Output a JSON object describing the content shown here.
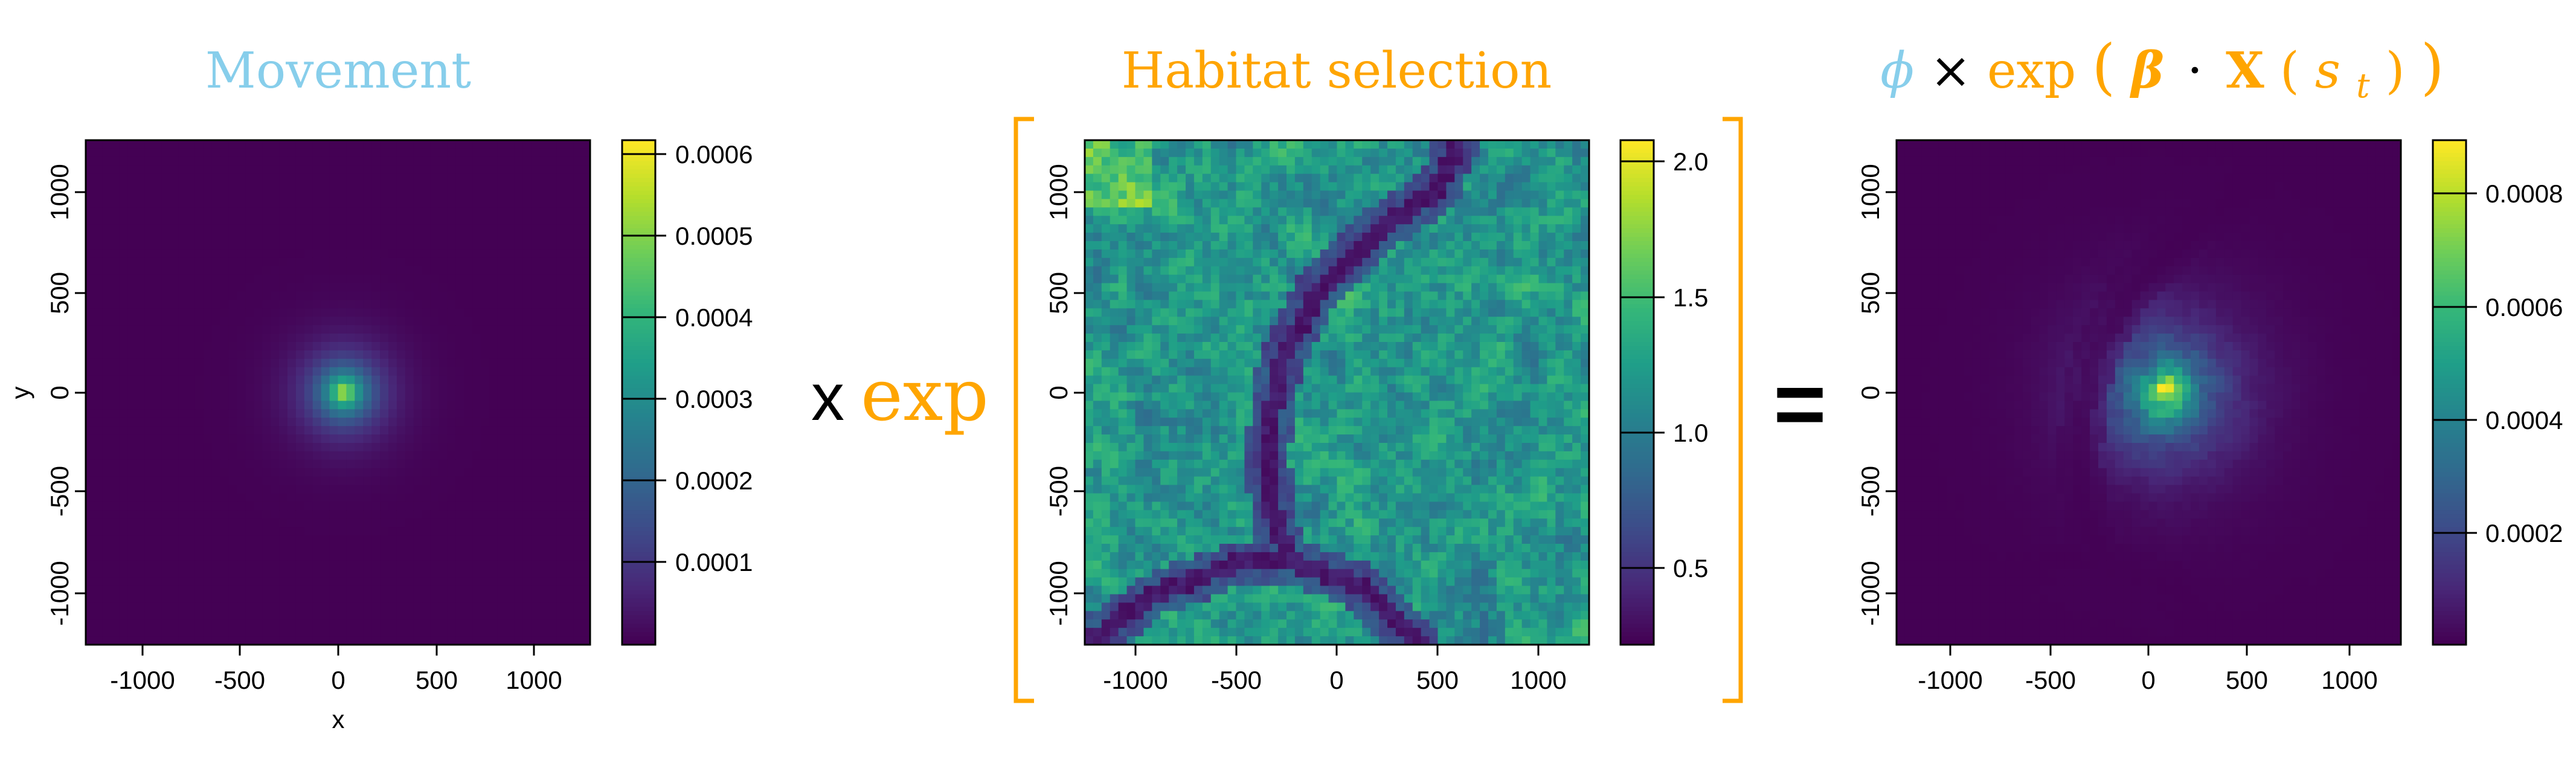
{
  "colors": {
    "movement": "#87CEEB",
    "habitat": "#FFA500",
    "bracket": "#FFA500",
    "text": "#000000",
    "viridis": [
      "#440154",
      "#482878",
      "#3E4A89",
      "#31688E",
      "#26828E",
      "#1F9E89",
      "#35B779",
      "#6DCD59",
      "#B4DE2C",
      "#FDE725"
    ]
  },
  "operators": {
    "times": "x",
    "exp": "exp",
    "equals": "="
  },
  "result_title": {
    "phi": "ϕ",
    "times": "×",
    "exp": "exp",
    "beta": "β",
    "dot": "·",
    "X": "X",
    "s": "s",
    "t": "t"
  },
  "chart_data": [
    {
      "type": "heatmap",
      "title": "Movement",
      "xlabel": "x",
      "ylabel": "y",
      "xlim": [
        -1250,
        1250
      ],
      "ylim": [
        -1250,
        1250
      ],
      "xticks": [
        "-1000",
        "-500",
        "0",
        "500",
        "1000"
      ],
      "yticks": [
        "-1000",
        "-500",
        "0",
        "500",
        "1000"
      ],
      "pattern": "radial peak centered near (30, 0)",
      "peak": {
        "x": 30,
        "y": 0
      },
      "colorbar": {
        "min": 0,
        "max": 0.00062,
        "ticks": [
          "0.0001",
          "0.0002",
          "0.0003",
          "0.0004",
          "0.0005",
          "0.0006"
        ]
      }
    },
    {
      "type": "heatmap",
      "title": "Habitat selection",
      "xlabel": "",
      "ylabel": "",
      "xlim": [
        -1250,
        1250
      ],
      "ylim": [
        -1250,
        1250
      ],
      "xticks": [
        "-1000",
        "-500",
        "0",
        "500",
        "1000"
      ],
      "yticks": [
        "-1000",
        "-500",
        "0",
        "500",
        "1000"
      ],
      "pattern": "noisy habitat field crossed by two low-value river channels",
      "colorbar": {
        "min": 0.2,
        "max": 2.1,
        "ticks": [
          "0.5",
          "1.0",
          "1.5",
          "2.0"
        ]
      }
    },
    {
      "type": "heatmap",
      "title": "",
      "xlabel": "",
      "ylabel": "",
      "xlim": [
        -1250,
        1250
      ],
      "ylim": [
        -1250,
        1250
      ],
      "xticks": [
        "-1000",
        "-500",
        "0",
        "500",
        "1000"
      ],
      "yticks": [
        "-1000",
        "-500",
        "0",
        "500",
        "1000"
      ],
      "pattern": "product of movement kernel and habitat selection",
      "peak": {
        "x": 80,
        "y": 0
      },
      "colorbar": {
        "min": 0,
        "max": 0.00088,
        "ticks": [
          "0.0002",
          "0.0004",
          "0.0006",
          "0.0008"
        ]
      }
    }
  ]
}
